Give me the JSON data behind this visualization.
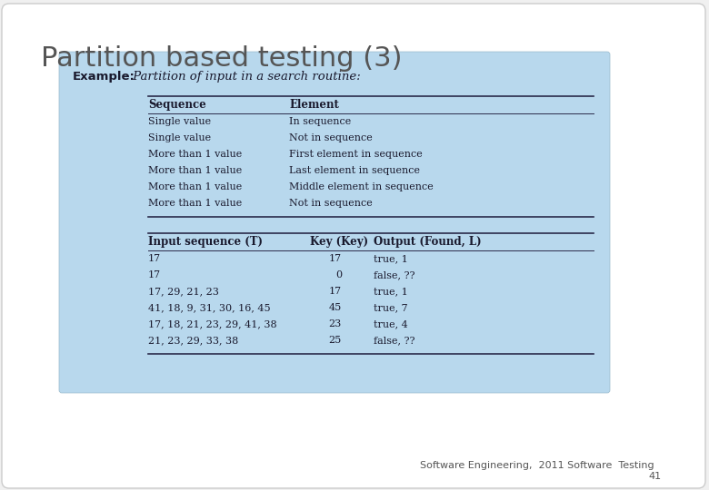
{
  "title": "Partition based testing (3)",
  "title_fontsize": 22,
  "title_color": "#555555",
  "bg_color": "#f0f0f0",
  "box_bg_color": "#b8d8ed",
  "example_label": "Example:",
  "example_italic": " Partition of input in a search routine:",
  "table1_headers": [
    "Sequence",
    "Element"
  ],
  "table1_rows": [
    [
      "Single value",
      "In sequence"
    ],
    [
      "Single value",
      "Not in sequence"
    ],
    [
      "More than 1 value",
      "First element in sequence"
    ],
    [
      "More than 1 value",
      "Last element in sequence"
    ],
    [
      "More than 1 value",
      "Middle element in sequence"
    ],
    [
      "More than 1 value",
      "Not in sequence"
    ]
  ],
  "table2_headers": [
    "Input sequence (T)",
    "Key (Key)",
    "Output (Found, L)"
  ],
  "table2_rows": [
    [
      "17",
      "17",
      "true, 1"
    ],
    [
      "17",
      "0",
      "false, ??"
    ],
    [
      "17, 29, 21, 23",
      "17",
      "true, 1"
    ],
    [
      "41, 18, 9, 31, 30, 16, 45",
      "45",
      "true, 7"
    ],
    [
      "17, 18, 21, 23, 29, 41, 38",
      "23",
      "true, 4"
    ],
    [
      "21, 23, 29, 33, 38",
      "25",
      "false, ??"
    ]
  ],
  "footer_line1": "Software Engineering,  2011 Software  Testing",
  "footer_line2": "41",
  "footer_fontsize": 8,
  "dark_text": "#1a1a2e",
  "line_color": "#2a2a4a",
  "serif_font": "DejaVu Serif"
}
